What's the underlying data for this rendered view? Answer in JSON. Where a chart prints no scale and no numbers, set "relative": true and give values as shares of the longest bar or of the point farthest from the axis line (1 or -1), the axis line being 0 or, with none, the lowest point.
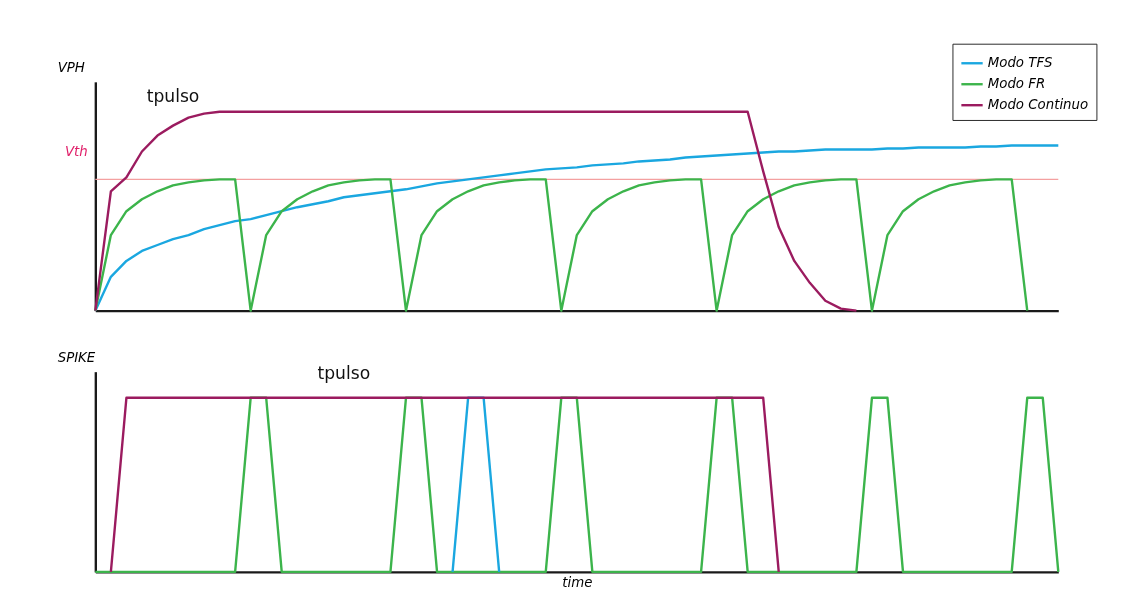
{
  "chart_data": [
    {
      "type": "line",
      "relative": true,
      "ylabel": "VPH",
      "tick_labels": false,
      "legend": "top right",
      "marker": "none",
      "line_style": "solid",
      "categories": [
        null,
        null,
        null,
        null,
        null,
        null,
        null,
        null,
        null,
        null,
        null,
        null,
        null,
        null,
        null,
        null,
        null,
        null,
        null,
        null,
        null,
        null,
        null,
        null,
        null,
        null,
        null,
        null,
        null,
        null,
        null,
        null,
        null,
        null,
        null,
        null,
        null,
        null,
        null,
        null,
        null,
        null,
        null,
        null,
        null,
        null,
        null,
        null,
        null,
        null,
        null,
        null,
        null,
        null,
        null,
        null,
        null,
        null,
        null,
        null,
        null,
        null,
        null
      ],
      "series": [
        {
          "name": "Modo TFS",
          "color": "#1aa7e0",
          "values": [
            0,
            0.17,
            0.25,
            0.3,
            0.33,
            0.36,
            0.38,
            0.41,
            0.43,
            0.45,
            0.46,
            0.48,
            0.5,
            0.52,
            0.535,
            0.55,
            0.57,
            0.58,
            0.59,
            0.6,
            0.61,
            0.625,
            0.64,
            0.65,
            0.66,
            0.67,
            0.68,
            0.69,
            0.7,
            0.71,
            0.715,
            0.72,
            0.73,
            0.735,
            0.74,
            0.75,
            0.755,
            0.76,
            0.77,
            0.775,
            0.78,
            0.785,
            0.79,
            0.795,
            0.8,
            0.8,
            0.805,
            0.81,
            0.81,
            0.81,
            0.81,
            0.815,
            0.815,
            0.82,
            0.82,
            0.82,
            0.82,
            0.825,
            0.825,
            0.83,
            0.83,
            0.83,
            0.83
          ]
        },
        {
          "name": "Modo FR",
          "color": "#3cb44b",
          "values": [
            0,
            0.38,
            0.5,
            0.56,
            0.6,
            0.63,
            0.645,
            0.655,
            0.66,
            0.66,
            0,
            0.38,
            0.5,
            0.56,
            0.6,
            0.63,
            0.645,
            0.655,
            0.66,
            0.66,
            0,
            0.38,
            0.5,
            0.56,
            0.6,
            0.63,
            0.645,
            0.655,
            0.66,
            0.66,
            0,
            0.38,
            0.5,
            0.56,
            0.6,
            0.63,
            0.645,
            0.655,
            0.66,
            0.66,
            0,
            0.38,
            0.5,
            0.56,
            0.6,
            0.63,
            0.645,
            0.655,
            0.66,
            0.66,
            0,
            0.38,
            0.5,
            0.56,
            0.6,
            0.63,
            0.645,
            0.655,
            0.66,
            0.66,
            0,
            null,
            null
          ]
        },
        {
          "name": "Modo Continuo",
          "color": "#9b1b5f",
          "values": [
            0,
            0.6,
            0.67,
            0.8,
            0.88,
            0.93,
            0.97,
            0.99,
            1,
            1,
            1,
            1,
            1,
            1,
            1,
            1,
            1,
            1,
            1,
            1,
            1,
            1,
            1,
            1,
            1,
            1,
            1,
            1,
            1,
            1,
            1,
            1,
            1,
            1,
            1,
            1,
            1,
            1,
            1,
            1,
            1,
            1,
            1,
            0.7,
            0.42,
            0.25,
            0.14,
            0.05,
            0.01,
            0,
            null,
            null,
            null,
            null,
            null,
            null,
            null,
            null,
            null,
            null,
            null,
            null,
            null
          ]
        }
      ],
      "ref_lines": [
        {
          "axis": "y",
          "value": 0.66,
          "label": "Vth",
          "color": "#f4a0a0"
        }
      ],
      "annotations": [
        "tpulso"
      ]
    },
    {
      "type": "line",
      "relative": true,
      "ylabel": "SPIKE",
      "xlabel": "time",
      "tick_labels": false,
      "legend": false,
      "marker": "none",
      "line_style": "solid",
      "categories": [
        null,
        null,
        null,
        null,
        null,
        null,
        null,
        null,
        null,
        null,
        null,
        null,
        null,
        null,
        null,
        null,
        null,
        null,
        null,
        null,
        null,
        null,
        null,
        null,
        null,
        null,
        null,
        null,
        null,
        null,
        null,
        null,
        null,
        null,
        null,
        null,
        null,
        null,
        null,
        null,
        null,
        null,
        null,
        null,
        null,
        null,
        null,
        null,
        null,
        null,
        null,
        null,
        null,
        null,
        null,
        null,
        null,
        null,
        null,
        null,
        null,
        null,
        null
      ],
      "series": [
        {
          "color": "#3cb44b",
          "values": [
            0,
            0,
            0,
            0,
            0,
            0,
            0,
            0,
            0,
            0,
            1,
            1,
            0,
            0,
            0,
            0,
            0,
            0,
            0,
            0,
            1,
            1,
            0,
            0,
            0,
            0,
            0,
            0,
            0,
            0,
            1,
            1,
            0,
            0,
            0,
            0,
            0,
            0,
            0,
            0,
            1,
            1,
            0,
            0,
            0,
            0,
            0,
            0,
            0,
            0,
            1,
            1,
            0,
            0,
            0,
            0,
            0,
            0,
            0,
            0,
            1,
            1,
            0
          ]
        },
        {
          "color": "#1aa7e0",
          "values": [
            null,
            null,
            null,
            null,
            null,
            null,
            null,
            null,
            null,
            null,
            null,
            null,
            null,
            null,
            null,
            null,
            null,
            null,
            null,
            null,
            null,
            null,
            null,
            0,
            1,
            1,
            0,
            null,
            null,
            null,
            null,
            null,
            null,
            null,
            null,
            null,
            null,
            null,
            null,
            null,
            null,
            null,
            null,
            null,
            null,
            null,
            null,
            null,
            null,
            null,
            null,
            null,
            null,
            null,
            null,
            null,
            null,
            null,
            null,
            null,
            null,
            null,
            null
          ]
        },
        {
          "color": "#9b1b5f",
          "values": [
            null,
            0,
            1,
            1,
            1,
            1,
            1,
            1,
            1,
            1,
            1,
            1,
            1,
            1,
            1,
            1,
            1,
            1,
            1,
            1,
            1,
            1,
            1,
            1,
            1,
            1,
            1,
            1,
            1,
            1,
            1,
            1,
            1,
            1,
            1,
            1,
            1,
            1,
            1,
            1,
            1,
            1,
            1,
            1,
            0,
            null,
            null,
            null,
            null,
            null,
            null,
            null,
            null,
            null,
            null,
            null,
            null,
            null,
            null,
            null,
            null,
            null,
            null
          ]
        }
      ],
      "annotations": [
        "tpulso"
      ]
    }
  ]
}
